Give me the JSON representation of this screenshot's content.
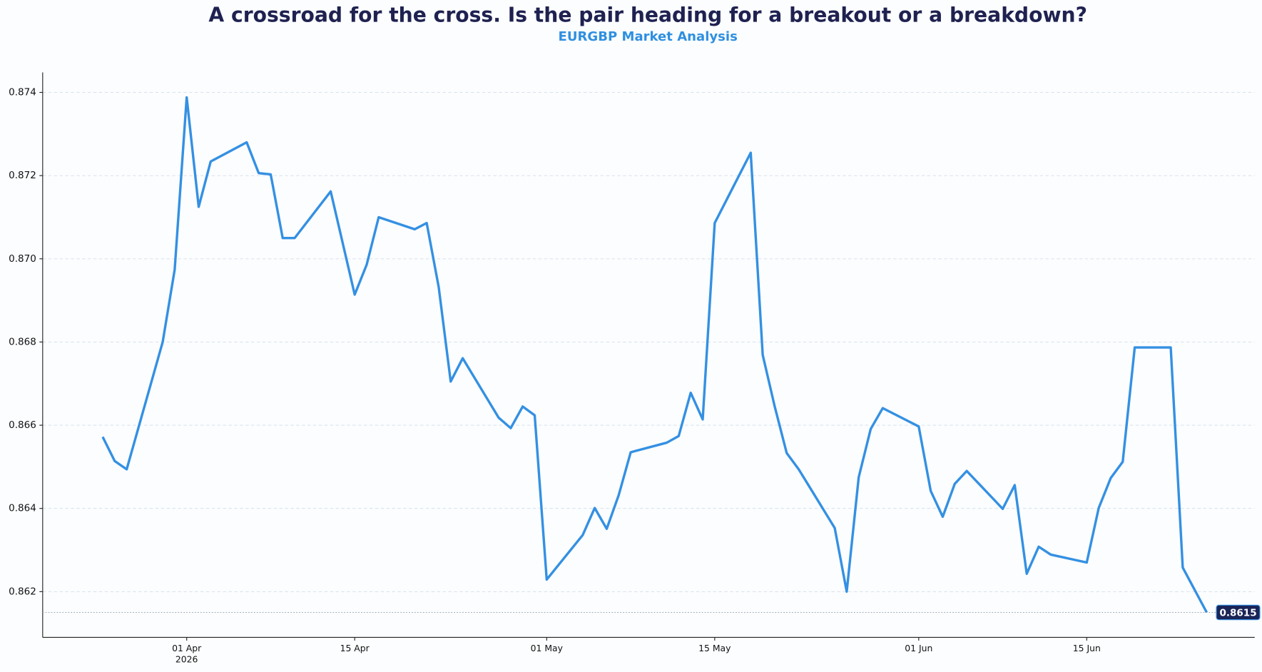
{
  "chart_data": {
    "type": "line",
    "title": "A crossroad for the cross. Is the pair heading for a breakout or a breakdown?",
    "subtitle": "EURGBP Market Analysis",
    "x": [
      "2026-03-25",
      "2026-03-26",
      "2026-03-27",
      "2026-03-30",
      "2026-03-31",
      "2026-04-01",
      "2026-04-02",
      "2026-04-03",
      "2026-04-06",
      "2026-04-07",
      "2026-04-08",
      "2026-04-09",
      "2026-04-10",
      "2026-04-13",
      "2026-04-15",
      "2026-04-16",
      "2026-04-17",
      "2026-04-20",
      "2026-04-21",
      "2026-04-22",
      "2026-04-23",
      "2026-04-24",
      "2026-04-27",
      "2026-04-28",
      "2026-04-29",
      "2026-04-30",
      "2026-05-01",
      "2026-05-04",
      "2026-05-05",
      "2026-05-06",
      "2026-05-07",
      "2026-05-08",
      "2026-05-11",
      "2026-05-12",
      "2026-05-13",
      "2026-05-14",
      "2026-05-15",
      "2026-05-18",
      "2026-05-19",
      "2026-05-20",
      "2026-05-21",
      "2026-05-22",
      "2026-05-25",
      "2026-05-26",
      "2026-05-27",
      "2026-05-28",
      "2026-05-29",
      "2026-06-01",
      "2026-06-02",
      "2026-06-03",
      "2026-06-04",
      "2026-06-05",
      "2026-06-08",
      "2026-06-09",
      "2026-06-10",
      "2026-06-11",
      "2026-06-12",
      "2026-06-15",
      "2026-06-16",
      "2026-06-17",
      "2026-06-18",
      "2026-06-19",
      "2026-06-22",
      "2026-06-23",
      "2026-06-25"
    ],
    "values": [
      0.86572,
      0.86514,
      0.86494,
      0.868,
      0.86974,
      0.87388,
      0.87125,
      0.87234,
      0.8728,
      0.87206,
      0.87203,
      0.8705,
      0.8705,
      0.87162,
      0.86914,
      0.86986,
      0.871,
      0.87071,
      0.87086,
      0.86932,
      0.86705,
      0.86761,
      0.86618,
      0.86593,
      0.86645,
      0.86624,
      0.86229,
      0.86336,
      0.86401,
      0.86351,
      0.86432,
      0.86535,
      0.86558,
      0.86574,
      0.86678,
      0.86614,
      0.87086,
      0.87255,
      0.86769,
      0.86645,
      0.86533,
      0.86494,
      0.86353,
      0.862,
      0.86475,
      0.86591,
      0.86641,
      0.86597,
      0.86442,
      0.8638,
      0.86459,
      0.8649,
      0.86399,
      0.86456,
      0.86243,
      0.86308,
      0.86289,
      0.8627,
      0.86401,
      0.86473,
      0.86512,
      0.86787,
      0.86787,
      0.86258,
      0.8615
    ],
    "color": "#3490e2",
    "xlim": [
      "2026-03-20",
      "2026-06-29"
    ],
    "xticks": [
      {
        "value": "2026-04-01",
        "label": "01 Apr"
      },
      {
        "value": "2026-04-15",
        "label": "15 Apr"
      },
      {
        "value": "2026-05-01",
        "label": "01 May"
      },
      {
        "value": "2026-05-15",
        "label": "15 May"
      },
      {
        "value": "2026-06-01",
        "label": "01 Jun"
      },
      {
        "value": "2026-06-15",
        "label": "15 Jun"
      }
    ],
    "xtick_year": "2026",
    "ylim": [
      0.8609,
      0.87448
    ],
    "yticks": [
      0.862,
      0.864,
      0.866,
      0.868,
      {
        "value": 0.87,
        "label": "0.870"
      },
      0.872,
      0.874
    ],
    "grid": true
  }
}
